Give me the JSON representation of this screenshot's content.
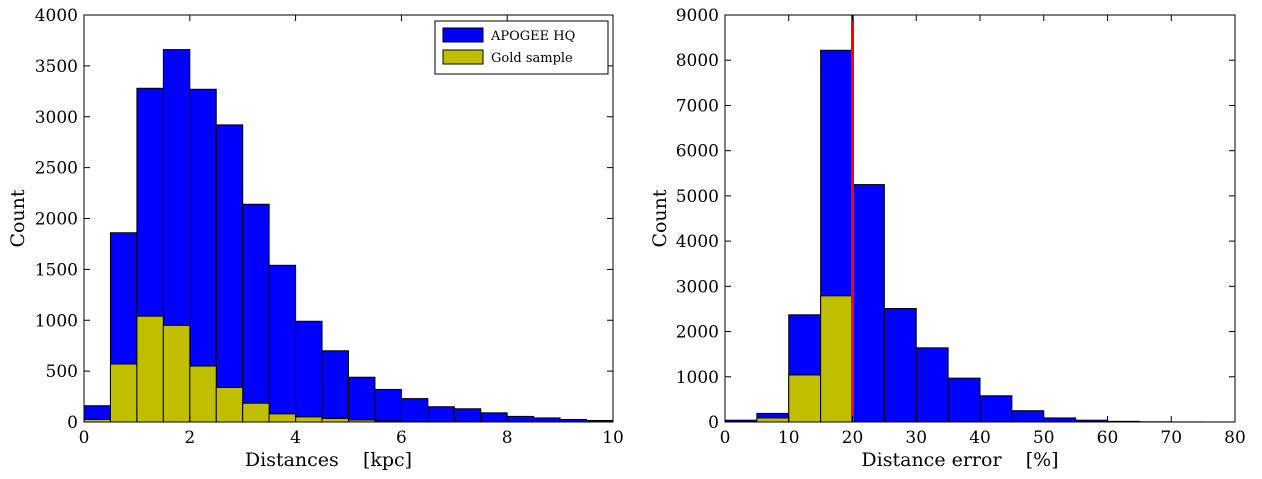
{
  "chart_data": [
    {
      "type": "bar",
      "xlabel": "Distances    [kpc]",
      "ylabel": "Count",
      "xlim": [
        0,
        10
      ],
      "ylim": [
        0,
        4000
      ],
      "xticks": [
        0,
        2,
        4,
        6,
        8,
        10
      ],
      "yticks": [
        0,
        500,
        1000,
        1500,
        2000,
        2500,
        3000,
        3500,
        4000
      ],
      "bin_edges": [
        0,
        0.5,
        1,
        1.5,
        2,
        2.5,
        3,
        3.5,
        4,
        4.5,
        5,
        5.5,
        6,
        6.5,
        7,
        7.5,
        8,
        8.5,
        9,
        9.5,
        10
      ],
      "legend_position": "top-right",
      "series": [
        {
          "name": "APOGEE HQ",
          "color": "#0000ff",
          "values": [
            160,
            1860,
            3280,
            3660,
            3270,
            2920,
            2140,
            1540,
            990,
            700,
            440,
            320,
            230,
            150,
            130,
            90,
            55,
            40,
            25,
            15
          ]
        },
        {
          "name": "Gold sample",
          "color": "#bfbf00",
          "values": [
            25,
            570,
            1040,
            950,
            550,
            340,
            185,
            80,
            50,
            35,
            20,
            10,
            5,
            5,
            3,
            2,
            1,
            1,
            0,
            0
          ]
        }
      ]
    },
    {
      "type": "bar",
      "xlabel": "Distance error    [%]",
      "ylabel": "Count",
      "xlim": [
        0,
        80
      ],
      "ylim": [
        0,
        9000
      ],
      "xticks": [
        0,
        10,
        20,
        30,
        40,
        50,
        60,
        70,
        80
      ],
      "yticks": [
        0,
        1000,
        2000,
        3000,
        4000,
        5000,
        6000,
        7000,
        8000,
        9000
      ],
      "bin_edges": [
        0,
        5,
        10,
        15,
        20,
        25,
        30,
        35,
        40,
        45,
        50,
        55,
        60,
        65,
        70,
        75,
        80
      ],
      "vline_x": 20,
      "vline_color": "#ff0000",
      "series": [
        {
          "name": "APOGEE HQ",
          "color": "#0000ff",
          "values": [
            40,
            190,
            2370,
            8220,
            5250,
            2510,
            1640,
            970,
            580,
            250,
            90,
            40,
            15,
            5,
            2,
            1
          ]
        },
        {
          "name": "Gold sample",
          "color": "#bfbf00",
          "values": [
            10,
            90,
            1040,
            2790,
            0,
            0,
            0,
            0,
            0,
            0,
            0,
            0,
            0,
            0,
            0,
            0
          ]
        }
      ]
    }
  ]
}
